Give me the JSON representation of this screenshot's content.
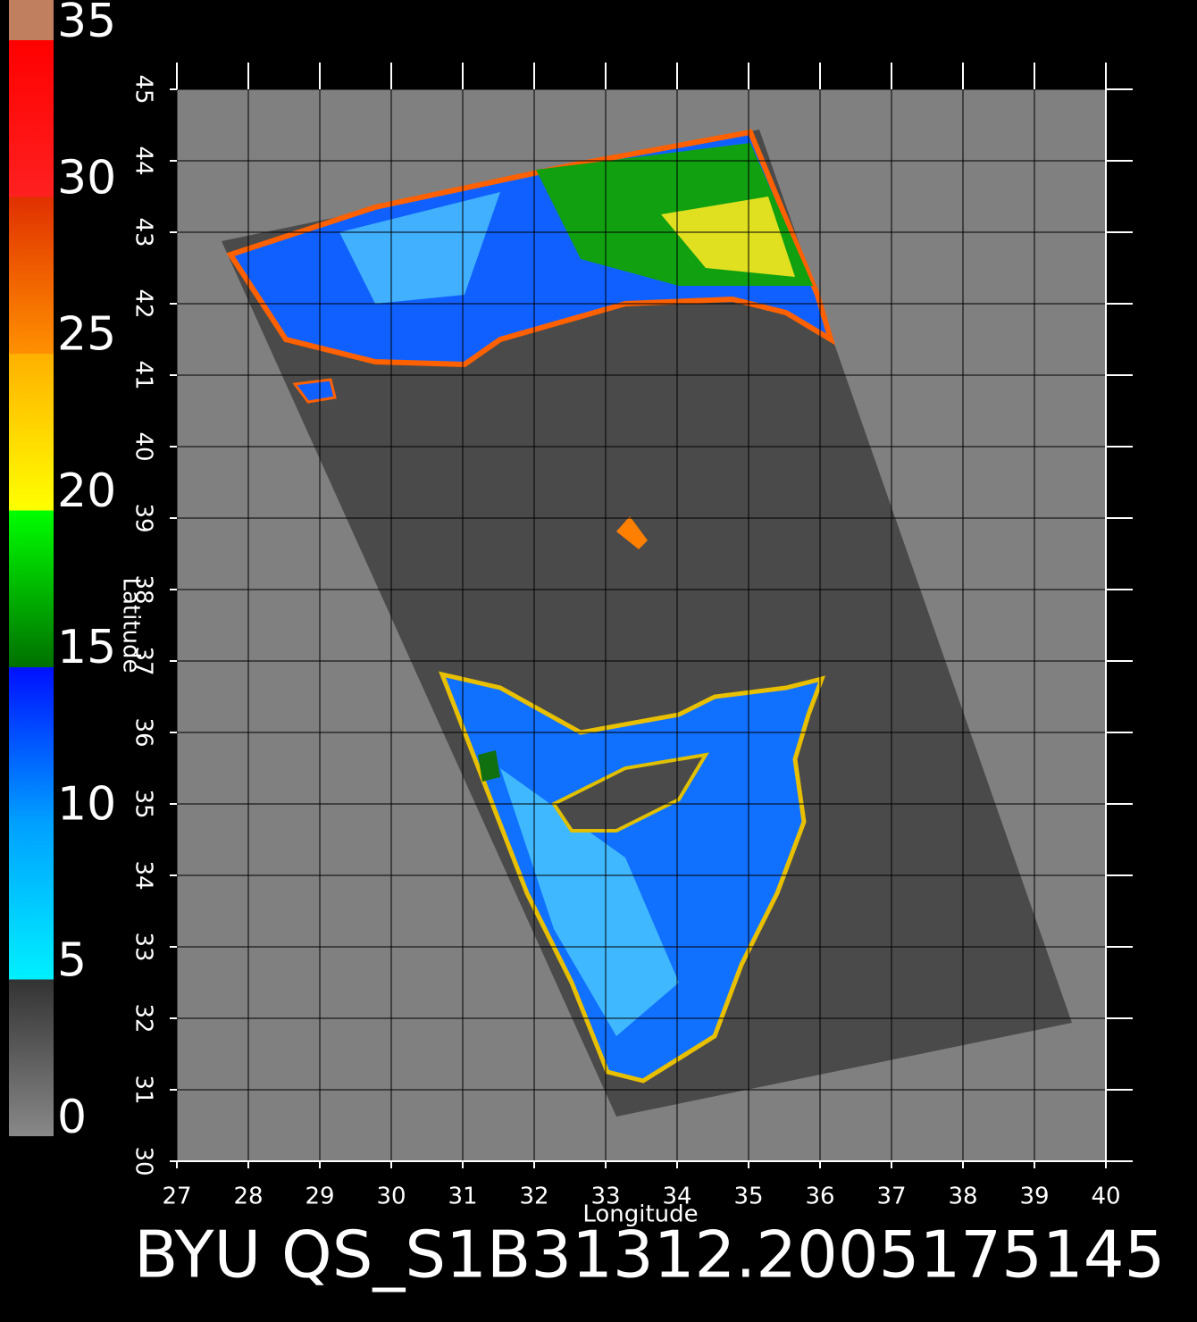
{
  "colorbar": {
    "lim": [
      0,
      35
    ],
    "ticks": [
      0,
      5,
      10,
      15,
      20,
      25,
      30,
      35
    ]
  },
  "map": {
    "xlabel": "Longitude",
    "ylabel": "Latitude",
    "xlim": [
      27,
      40
    ],
    "ylim": [
      30,
      45
    ],
    "xticks": [
      27,
      28,
      29,
      30,
      31,
      32,
      33,
      34,
      35,
      36,
      37,
      38,
      39,
      40
    ],
    "yticks": [
      30,
      31,
      32,
      33,
      34,
      35,
      36,
      37,
      38,
      39,
      40,
      41,
      42,
      43,
      44,
      45
    ]
  },
  "caption": "BYU  QS_S1B31312.2005175145"
}
